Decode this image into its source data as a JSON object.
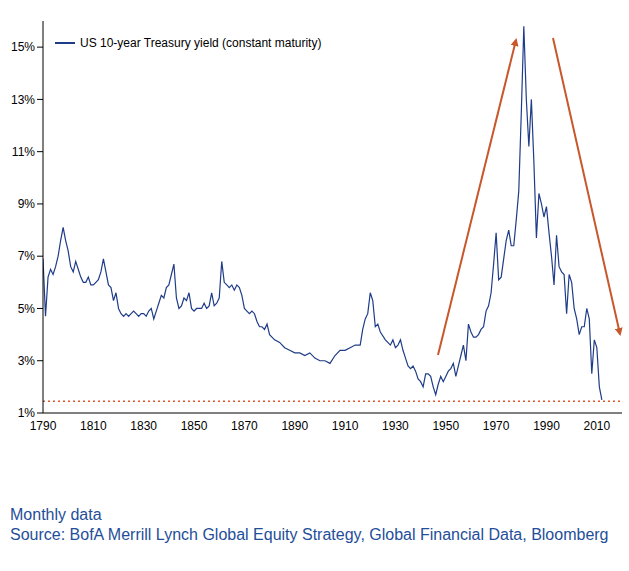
{
  "chart_data": {
    "type": "line",
    "legend": "top-left",
    "grid": false,
    "x": [
      1790,
      1791,
      1792,
      1793,
      1794,
      1795,
      1796,
      1797,
      1798,
      1799,
      1800,
      1801,
      1802,
      1803,
      1804,
      1805,
      1806,
      1807,
      1808,
      1809,
      1810,
      1811,
      1812,
      1813,
      1814,
      1815,
      1816,
      1817,
      1818,
      1819,
      1820,
      1821,
      1822,
      1823,
      1824,
      1825,
      1826,
      1827,
      1828,
      1829,
      1830,
      1831,
      1832,
      1833,
      1834,
      1835,
      1836,
      1837,
      1838,
      1839,
      1840,
      1841,
      1842,
      1843,
      1844,
      1845,
      1846,
      1847,
      1848,
      1849,
      1850,
      1851,
      1852,
      1853,
      1854,
      1855,
      1856,
      1857,
      1858,
      1859,
      1860,
      1861,
      1862,
      1863,
      1864,
      1865,
      1866,
      1867,
      1868,
      1869,
      1870,
      1871,
      1872,
      1873,
      1874,
      1875,
      1876,
      1877,
      1878,
      1879,
      1880,
      1882,
      1884,
      1886,
      1888,
      1890,
      1892,
      1894,
      1896,
      1898,
      1900,
      1902,
      1904,
      1906,
      1908,
      1910,
      1912,
      1914,
      1916,
      1917,
      1918,
      1919,
      1920,
      1921,
      1922,
      1923,
      1924,
      1926,
      1928,
      1929,
      1930,
      1931,
      1932,
      1933,
      1934,
      1935,
      1936,
      1937,
      1938,
      1939,
      1940,
      1941,
      1942,
      1943,
      1944,
      1945,
      1946,
      1947,
      1948,
      1949,
      1950,
      1951,
      1952,
      1953,
      1954,
      1955,
      1956,
      1957,
      1958,
      1959,
      1960,
      1961,
      1962,
      1963,
      1964,
      1965,
      1966,
      1967,
      1968,
      1969,
      1970,
      1971,
      1972,
      1973,
      1974,
      1975,
      1976,
      1977,
      1978,
      1979,
      1980,
      1981,
      1982,
      1983,
      1984,
      1985,
      1986,
      1987,
      1988,
      1989,
      1990,
      1991,
      1992,
      1993,
      1994,
      1995,
      1996,
      1997,
      1998,
      1999,
      2000,
      2001,
      2002,
      2003,
      2004,
      2005,
      2006,
      2007,
      2008,
      2009,
      2010,
      2011,
      2012
    ],
    "series": [
      {
        "name": "US 10-year Treasury yield (constant maturity)",
        "color": "#1f3c88",
        "values": [
          6.9,
          4.7,
          6.2,
          6.5,
          6.3,
          6.6,
          7.0,
          7.6,
          8.1,
          7.6,
          7.2,
          6.6,
          6.4,
          6.8,
          6.5,
          6.2,
          6.0,
          6.0,
          6.2,
          5.9,
          5.9,
          6.0,
          6.1,
          6.4,
          6.9,
          6.4,
          5.9,
          5.8,
          5.3,
          5.6,
          5.0,
          4.8,
          4.7,
          4.8,
          4.7,
          4.8,
          4.9,
          4.8,
          4.7,
          4.8,
          4.8,
          4.7,
          4.9,
          5.0,
          4.6,
          4.9,
          5.2,
          5.5,
          5.4,
          5.8,
          5.9,
          6.3,
          6.7,
          5.4,
          5.0,
          5.1,
          5.4,
          5.3,
          5.6,
          5.0,
          4.9,
          5.0,
          5.0,
          5.0,
          5.2,
          5.0,
          5.1,
          5.6,
          5.1,
          5.2,
          5.4,
          6.8,
          6.0,
          5.9,
          5.8,
          5.9,
          5.7,
          5.9,
          5.8,
          5.5,
          5.0,
          4.9,
          4.8,
          4.9,
          4.8,
          4.5,
          4.3,
          4.3,
          4.2,
          4.4,
          4.0,
          3.8,
          3.7,
          3.5,
          3.4,
          3.3,
          3.3,
          3.2,
          3.3,
          3.1,
          3.0,
          3.0,
          2.9,
          3.2,
          3.4,
          3.4,
          3.5,
          3.6,
          3.6,
          4.2,
          4.6,
          4.8,
          5.6,
          5.3,
          4.3,
          4.4,
          4.1,
          3.8,
          3.6,
          3.8,
          3.5,
          3.6,
          3.8,
          3.4,
          3.1,
          2.8,
          2.7,
          2.8,
          2.6,
          2.3,
          2.2,
          2.0,
          2.5,
          2.5,
          2.4,
          2.0,
          1.7,
          2.1,
          2.4,
          2.2,
          2.4,
          2.6,
          2.7,
          2.9,
          2.4,
          2.8,
          3.2,
          3.6,
          3.0,
          4.4,
          4.1,
          3.9,
          3.9,
          4.0,
          4.2,
          4.3,
          4.9,
          5.1,
          5.6,
          6.7,
          7.9,
          6.1,
          6.2,
          6.9,
          7.6,
          8.0,
          7.4,
          7.4,
          8.4,
          9.5,
          12.5,
          15.8,
          13.0,
          11.2,
          13.0,
          10.6,
          7.7,
          9.4,
          9.0,
          8.5,
          8.9,
          7.9,
          7.0,
          5.9,
          7.8,
          6.6,
          6.4,
          6.3,
          4.8,
          6.3,
          6.0,
          5.0,
          4.6,
          4.0,
          4.3,
          4.3,
          5.0,
          4.6,
          2.5,
          3.8,
          3.5,
          2.0,
          1.5
        ]
      }
    ],
    "xlim": [
      1790,
      2020
    ],
    "xticks": [
      1790,
      1810,
      1830,
      1850,
      1870,
      1890,
      1910,
      1930,
      1950,
      1970,
      1990,
      2010
    ],
    "ylim": [
      1,
      16
    ],
    "yticks": [
      {
        "value": 1,
        "label": "1%"
      },
      {
        "value": 3,
        "label": "3%"
      },
      {
        "value": 5,
        "label": "5%"
      },
      {
        "value": 7,
        "label": "7%"
      },
      {
        "value": 9,
        "label": "9%"
      },
      {
        "value": 11,
        "label": "11%"
      },
      {
        "value": 13,
        "label": "13%"
      },
      {
        "value": 15,
        "label": "15%"
      }
    ],
    "reference_line": {
      "y": 1.45,
      "color": "#e0562b",
      "line_style": "dotted"
    },
    "notes": [
      "Monthly data",
      "Source: BofA Merrill Lynch Global Equity Strategy, Global Financial Data, Bloomberg"
    ]
  }
}
